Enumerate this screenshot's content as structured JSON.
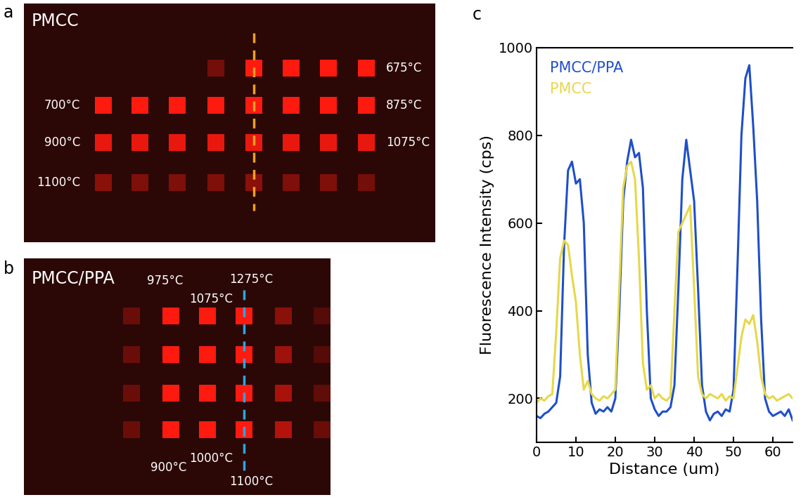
{
  "panel_labels": [
    "a",
    "b",
    "c"
  ],
  "images": [
    {
      "title": "PMCC",
      "color": "#f0a020",
      "labels": [
        "675°C",
        "700°C",
        "875°C",
        "900°C",
        "1075°C",
        "1100°C"
      ]
    },
    {
      "title": "PMCC/PPA",
      "color": "#2aa6e6",
      "labels": [
        "975°C",
        "1075°C",
        "1275°C",
        "900°C",
        "1000°C",
        "1100°C"
      ]
    }
  ],
  "chart_data": {
    "type": "line",
    "xlabel": "Distance (um)",
    "ylabel": "Fluorescence Intensity (cps)",
    "x": [
      0,
      1,
      2,
      3,
      4,
      5,
      6,
      7,
      8,
      9,
      10,
      11,
      12,
      13,
      14,
      15,
      16,
      17,
      18,
      19,
      20,
      21,
      22,
      23,
      24,
      25,
      26,
      27,
      28,
      29,
      30,
      31,
      32,
      33,
      34,
      35,
      36,
      37,
      38,
      39,
      40,
      41,
      42,
      43,
      44,
      45,
      46,
      47,
      48,
      49,
      50,
      51,
      52,
      53,
      54,
      55,
      56,
      57,
      58,
      59,
      60,
      61,
      62,
      63,
      64,
      65
    ],
    "series": [
      {
        "name": "PMCC/PPA",
        "color": "#1f4fc8",
        "values": [
          160,
          155,
          165,
          170,
          180,
          190,
          250,
          550,
          720,
          740,
          690,
          700,
          600,
          300,
          190,
          165,
          175,
          170,
          180,
          170,
          200,
          400,
          650,
          740,
          790,
          750,
          760,
          680,
          400,
          200,
          175,
          160,
          170,
          170,
          180,
          230,
          450,
          700,
          790,
          720,
          650,
          450,
          230,
          170,
          150,
          165,
          170,
          160,
          175,
          170,
          220,
          500,
          800,
          930,
          960,
          820,
          650,
          380,
          200,
          170,
          160,
          165,
          170,
          160,
          175,
          150
        ]
      },
      {
        "name": "PMCC",
        "color": "#e6d84a",
        "values": [
          190,
          200,
          195,
          205,
          210,
          350,
          520,
          560,
          550,
          480,
          420,
          300,
          220,
          240,
          210,
          200,
          195,
          205,
          200,
          210,
          220,
          450,
          680,
          730,
          740,
          700,
          520,
          280,
          220,
          230,
          200,
          210,
          200,
          195,
          205,
          400,
          580,
          600,
          620,
          640,
          450,
          250,
          210,
          200,
          210,
          205,
          200,
          210,
          195,
          205,
          200,
          270,
          340,
          380,
          370,
          390,
          330,
          250,
          210,
          200,
          205,
          195,
          200,
          205,
          210,
          200
        ]
      }
    ],
    "xlim": [
      0,
      65
    ],
    "xticks": [
      0,
      10,
      20,
      30,
      40,
      50,
      60
    ],
    "ylim": [
      100,
      1000
    ],
    "yticks": [
      200,
      400,
      600,
      800,
      1000
    ],
    "legend": "upper left"
  }
}
